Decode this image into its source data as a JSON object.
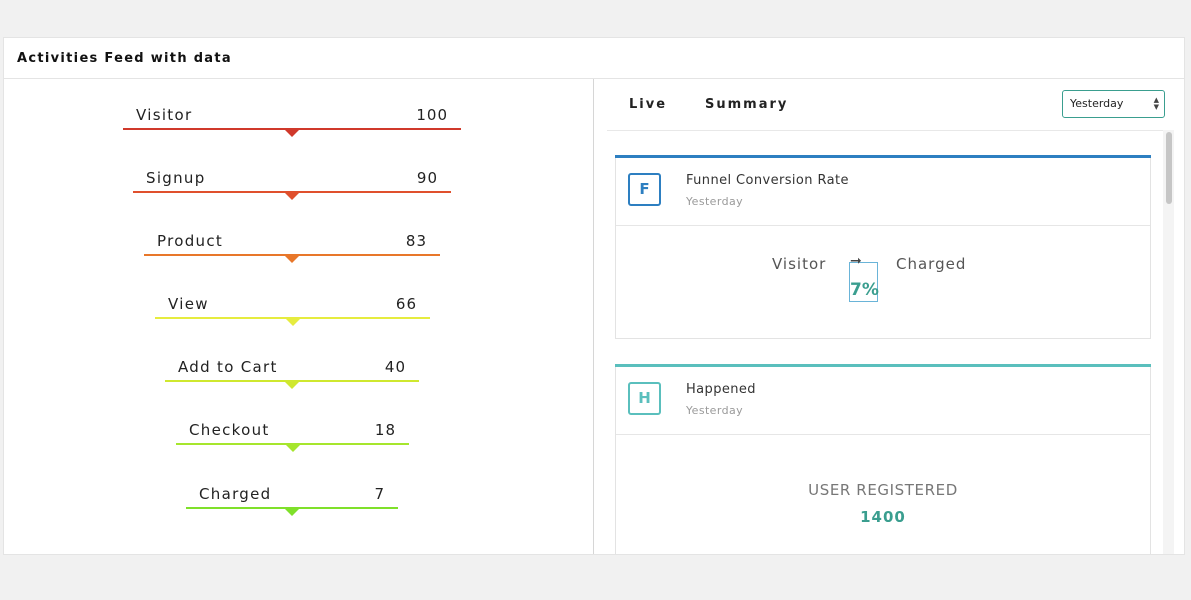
{
  "panel": {
    "title": "Activities Feed with data"
  },
  "funnel": {
    "steps": [
      {
        "label": "Visitor",
        "value": "100",
        "color": "#d0392b"
      },
      {
        "label": "Signup",
        "value": "90",
        "color": "#e0502d"
      },
      {
        "label": "Product",
        "value": "83",
        "color": "#e8772a"
      },
      {
        "label": "View",
        "value": "66",
        "color": "#e6ec3f"
      },
      {
        "label": "Add to Cart",
        "value": "40",
        "color": "#cfe82f"
      },
      {
        "label": "Checkout",
        "value": "18",
        "color": "#a6e62d"
      },
      {
        "label": "Charged",
        "value": "7",
        "color": "#7fe02a"
      }
    ]
  },
  "tabs": {
    "live": "Live",
    "summary": "Summary"
  },
  "period_select": {
    "selected": "Yesterday"
  },
  "cards": {
    "funnel": {
      "initial": "F",
      "title": "Funnel Conversion Rate",
      "subtitle": "Yesterday",
      "from": "Visitor",
      "to": "Charged",
      "percent": "7%",
      "accent": "#2d7fc1"
    },
    "happened": {
      "initial": "H",
      "title": "Happened",
      "subtitle": "Yesterday",
      "event_name": "USER REGISTERED",
      "event_count": "1400",
      "accent": "#5abfbd"
    }
  },
  "icons": {
    "select_arrows": "updown-arrows-icon",
    "conversion_arrow": "arrow-right-icon"
  }
}
